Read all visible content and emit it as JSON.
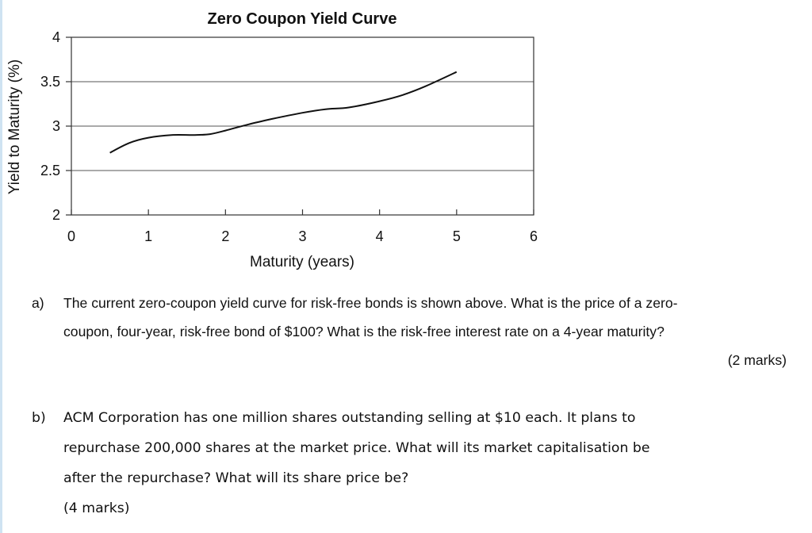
{
  "chart_data": {
    "type": "line",
    "title": "Zero Coupon Yield Curve",
    "xlabel": "Maturity (years)",
    "ylabel": "Yield to Maturity (%)",
    "xlim": [
      0,
      6
    ],
    "ylim": [
      2,
      4
    ],
    "x_ticks": [
      "0",
      "1",
      "2",
      "3",
      "4",
      "5",
      "6"
    ],
    "y_ticks": [
      "2",
      "2.5",
      "3",
      "3.5",
      "4"
    ],
    "grid": "horizontal",
    "series": [
      {
        "x": [
          0.5,
          0.75,
          1.0,
          1.3,
          1.6,
          1.8,
          2.0,
          2.3,
          2.6,
          3.0,
          3.3,
          3.6,
          4.0,
          4.3,
          4.6,
          5.0
        ],
        "y": [
          2.7,
          2.81,
          2.87,
          2.9,
          2.9,
          2.91,
          2.95,
          3.02,
          3.08,
          3.15,
          3.19,
          3.21,
          3.28,
          3.35,
          3.45,
          3.61
        ]
      }
    ]
  },
  "questions": {
    "a": {
      "marker": "a)",
      "line1": "The current zero-coupon yield curve for risk-free bonds is shown above. What is the price of a zero-",
      "line2": "coupon, four-year, risk-free bond of $100? What is the risk-free interest rate on a 4-year maturity?",
      "marks": "(2 marks)"
    },
    "b": {
      "marker": "b)",
      "line1": "ACM Corporation has one million shares outstanding selling at $10 each. It plans to",
      "line2": "repurchase 200,000 shares at the market price. What will its market capitalisation be",
      "line3": "after the repurchase? What will its share price be?",
      "marks": "(4 marks)"
    }
  }
}
